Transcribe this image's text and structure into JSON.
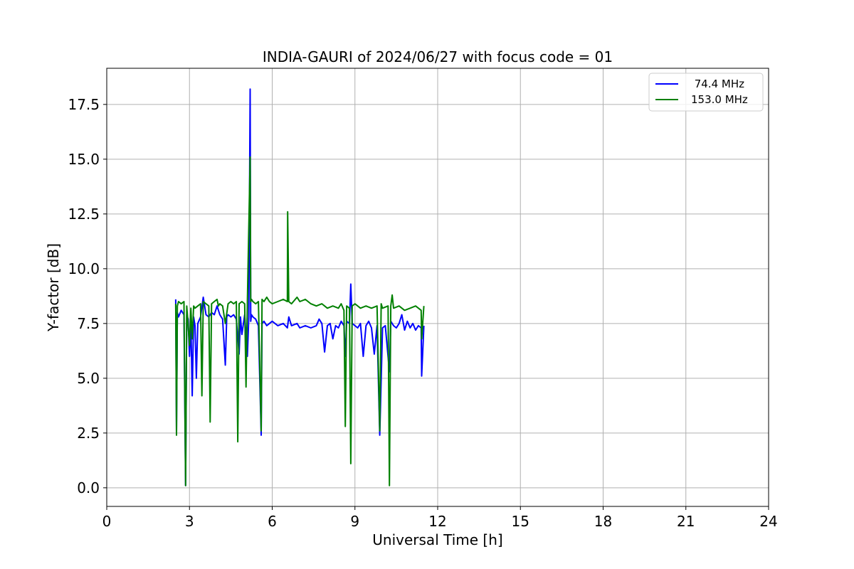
{
  "chart_data": {
    "type": "line",
    "title": "INDIA-GAURI of 2024/06/27 with focus code = 01",
    "xlabel": "Universal Time [h]",
    "ylabel": "Y-factor [dB]",
    "xlim": [
      0,
      24
    ],
    "ylim": [
      -0.85,
      19.15
    ],
    "xticks": [
      0,
      3,
      6,
      9,
      12,
      15,
      18,
      21,
      24
    ],
    "xtick_labels": [
      "0",
      "3",
      "6",
      "9",
      "12",
      "15",
      "18",
      "21",
      "24"
    ],
    "yticks": [
      0.0,
      2.5,
      5.0,
      7.5,
      10.0,
      12.5,
      15.0,
      17.5
    ],
    "ytick_labels": [
      "0.0",
      "2.5",
      "5.0",
      "7.5",
      "10.0",
      "12.5",
      "15.0",
      "17.5"
    ],
    "grid": true,
    "legend_position": "top-right",
    "series": [
      {
        "name": " 74.4 MHz",
        "color": "#0000ff",
        "x": [
          2.5,
          2.53,
          2.56,
          2.6,
          2.7,
          2.8,
          2.86,
          2.9,
          2.95,
          3.0,
          3.05,
          3.1,
          3.15,
          3.2,
          3.25,
          3.3,
          3.4,
          3.5,
          3.6,
          3.7,
          3.8,
          3.9,
          4.0,
          4.1,
          4.2,
          4.3,
          4.35,
          4.4,
          4.5,
          4.6,
          4.7,
          4.8,
          4.85,
          4.9,
          5.0,
          5.1,
          5.15,
          5.2,
          5.22,
          5.25,
          5.3,
          5.4,
          5.5,
          5.6,
          5.63,
          5.7,
          5.8,
          5.9,
          6.0,
          6.2,
          6.4,
          6.55,
          6.6,
          6.7,
          6.9,
          7.0,
          7.2,
          7.4,
          7.6,
          7.7,
          7.8,
          7.9,
          8.0,
          8.1,
          8.2,
          8.3,
          8.4,
          8.5,
          8.6,
          8.65,
          8.7,
          8.8,
          8.85,
          8.9,
          9.0,
          9.1,
          9.2,
          9.3,
          9.4,
          9.5,
          9.6,
          9.7,
          9.8,
          9.9,
          10.0,
          10.1,
          10.25,
          10.3,
          10.4,
          10.5,
          10.6,
          10.7,
          10.8,
          10.9,
          11.0,
          11.1,
          11.2,
          11.3,
          11.4,
          11.42,
          11.5
        ],
        "y": [
          8.6,
          2.5,
          8.0,
          7.8,
          8.1,
          7.9,
          0.1,
          7.9,
          7.7,
          6.0,
          7.6,
          4.2,
          7.8,
          7.4,
          5.0,
          7.5,
          7.8,
          8.7,
          7.9,
          7.8,
          8.0,
          7.9,
          8.3,
          7.9,
          7.7,
          5.6,
          7.8,
          7.9,
          7.8,
          7.9,
          7.7,
          6.1,
          7.8,
          7.0,
          7.9,
          6.0,
          7.8,
          18.2,
          7.6,
          7.9,
          7.8,
          7.7,
          7.4,
          2.4,
          7.5,
          7.6,
          7.4,
          7.5,
          7.6,
          7.4,
          7.5,
          7.3,
          7.8,
          7.4,
          7.5,
          7.3,
          7.4,
          7.3,
          7.4,
          7.7,
          7.5,
          6.2,
          7.4,
          7.5,
          6.8,
          7.4,
          7.3,
          7.6,
          7.4,
          6.0,
          7.6,
          7.5,
          9.3,
          7.5,
          7.4,
          7.3,
          7.5,
          6.0,
          7.4,
          7.6,
          7.3,
          6.1,
          7.4,
          2.4,
          7.3,
          7.4,
          5.3,
          7.6,
          7.4,
          7.3,
          7.5,
          7.9,
          7.2,
          7.6,
          7.3,
          7.5,
          7.2,
          7.4,
          7.3,
          5.1,
          7.4
        ]
      },
      {
        "name": "153.0 MHz",
        "color": "#008000",
        "x": [
          2.5,
          2.53,
          2.56,
          2.6,
          2.7,
          2.8,
          2.86,
          2.9,
          3.0,
          3.05,
          3.1,
          3.15,
          3.2,
          3.3,
          3.4,
          3.45,
          3.5,
          3.6,
          3.7,
          3.75,
          3.8,
          3.9,
          4.0,
          4.05,
          4.1,
          4.2,
          4.3,
          4.4,
          4.5,
          4.6,
          4.7,
          4.75,
          4.8,
          4.9,
          5.0,
          5.05,
          5.1,
          5.2,
          5.22,
          5.25,
          5.3,
          5.4,
          5.5,
          5.6,
          5.63,
          5.7,
          5.8,
          5.9,
          6.0,
          6.2,
          6.4,
          6.55,
          6.56,
          6.6,
          6.7,
          6.9,
          7.0,
          7.2,
          7.4,
          7.6,
          7.8,
          8.0,
          8.2,
          8.4,
          8.5,
          8.6,
          8.65,
          8.7,
          8.8,
          8.85,
          8.9,
          9.0,
          9.2,
          9.4,
          9.6,
          9.8,
          9.9,
          9.95,
          10.0,
          10.2,
          10.25,
          10.3,
          10.35,
          10.4,
          10.6,
          10.8,
          11.0,
          11.2,
          11.4,
          11.42,
          11.5
        ],
        "y": [
          8.4,
          2.4,
          8.3,
          8.5,
          8.4,
          8.5,
          0.1,
          8.3,
          6.5,
          8.2,
          6.8,
          8.3,
          8.2,
          8.3,
          8.4,
          4.2,
          8.5,
          8.4,
          8.3,
          3.0,
          8.4,
          8.5,
          8.6,
          8.3,
          8.4,
          8.3,
          7.5,
          8.4,
          8.5,
          8.4,
          8.5,
          2.1,
          8.4,
          8.5,
          8.4,
          4.6,
          8.5,
          15.1,
          8.5,
          8.6,
          8.5,
          8.4,
          8.5,
          2.6,
          8.6,
          8.5,
          8.7,
          8.5,
          8.4,
          8.5,
          8.6,
          8.5,
          12.6,
          8.5,
          8.4,
          8.7,
          8.5,
          8.6,
          8.4,
          8.3,
          8.4,
          8.2,
          8.3,
          8.2,
          8.4,
          8.1,
          2.8,
          8.3,
          8.2,
          1.1,
          8.3,
          8.4,
          8.2,
          8.3,
          8.2,
          8.3,
          2.6,
          8.4,
          8.2,
          8.3,
          0.1,
          8.3,
          8.8,
          8.2,
          8.3,
          8.1,
          8.2,
          8.3,
          8.1,
          6.8,
          8.3
        ]
      }
    ]
  }
}
